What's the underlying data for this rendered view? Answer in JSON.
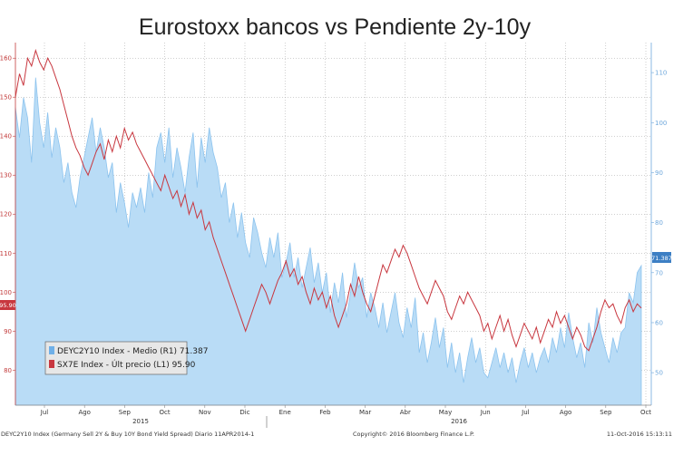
{
  "chart_data": {
    "type": "line",
    "title": "Eurostoxx bancos vs Pendiente 2y-10y",
    "x_labels": [
      "Jul",
      "Ago",
      "Sep",
      "Oct",
      "Nov",
      "Dic",
      "Ene",
      "Feb",
      "Mar",
      "Abr",
      "May",
      "Jun",
      "Jul",
      "Ago",
      "Sep",
      "Oct"
    ],
    "years": [
      "2015",
      "2016"
    ],
    "left_axis": {
      "ticks": [
        80,
        90,
        100,
        110,
        120,
        130,
        140,
        150,
        160
      ],
      "ylim": [
        71,
        164
      ]
    },
    "right_axis": {
      "ticks": [
        50,
        60,
        70,
        80,
        90,
        100,
        110
      ],
      "ylim": [
        43.5,
        116
      ]
    },
    "grid": true,
    "legend_position": "bottom-left",
    "series": [
      {
        "name": "DEYC2Y10 Index - Medio (R1) 71.387",
        "axis": "right",
        "type": "area",
        "color": "#b9dcf6",
        "last_value_label": "71.387",
        "values": [
          103,
          97,
          105,
          101,
          92,
          109,
          100,
          95,
          102,
          93,
          99,
          95,
          88,
          92,
          86,
          83,
          89,
          93,
          97,
          101,
          94,
          99,
          95,
          89,
          92,
          82,
          88,
          84,
          79,
          86,
          83,
          87,
          82,
          90,
          85,
          95,
          98,
          92,
          99,
          89,
          95,
          91,
          86,
          93,
          98,
          87,
          97,
          92,
          99,
          94,
          91,
          85,
          88,
          80,
          84,
          77,
          82,
          76,
          73,
          81,
          78,
          74,
          71,
          77,
          73,
          78,
          69,
          72,
          76,
          69,
          73,
          67,
          71,
          75,
          68,
          72,
          66,
          70,
          62,
          68,
          64,
          70,
          61,
          66,
          72,
          67,
          69,
          61,
          66,
          63,
          59,
          64,
          58,
          62,
          66,
          60,
          57,
          63,
          59,
          65,
          54,
          58,
          52,
          56,
          61,
          55,
          59,
          51,
          56,
          50,
          54,
          48,
          53,
          57,
          52,
          55,
          50,
          49,
          52,
          55,
          51,
          54,
          50,
          53,
          48,
          52,
          55,
          51,
          54,
          50,
          53,
          55,
          52,
          57,
          54,
          59,
          55,
          62,
          57,
          53,
          56,
          51,
          60,
          56,
          63,
          58,
          55,
          52,
          57,
          54,
          58,
          59,
          66,
          64,
          70,
          71.387
        ]
      },
      {
        "name": "SX7E Index - Últ precio (L1) 95.90",
        "axis": "left",
        "type": "line",
        "color": "#c8373f",
        "last_value_label": "95.90",
        "values": [
          150,
          156,
          153,
          160,
          158,
          162,
          159,
          157,
          160,
          158,
          155,
          152,
          148,
          144,
          140,
          137,
          135,
          132,
          130,
          133,
          136,
          138,
          134,
          139,
          136,
          140,
          137,
          142,
          139,
          141,
          138,
          136,
          134,
          132,
          130,
          128,
          126,
          130,
          127,
          124,
          126,
          122,
          125,
          120,
          123,
          119,
          121,
          116,
          118,
          114,
          111,
          108,
          105,
          102,
          99,
          96,
          93,
          90,
          93,
          96,
          99,
          102,
          100,
          97,
          100,
          103,
          105,
          108,
          104,
          106,
          102,
          104,
          100,
          97,
          101,
          98,
          100,
          96,
          99,
          94,
          91,
          94,
          97,
          102,
          99,
          104,
          100,
          97,
          95,
          99,
          103,
          107,
          105,
          108,
          111,
          109,
          112,
          110,
          107,
          104,
          101,
          99,
          97,
          100,
          103,
          101,
          99,
          95,
          93,
          96,
          99,
          97,
          100,
          98,
          96,
          94,
          90,
          92,
          88,
          91,
          94,
          90,
          93,
          89,
          86,
          89,
          92,
          90,
          88,
          91,
          87,
          90,
          93,
          91,
          95,
          92,
          94,
          91,
          88,
          91,
          89,
          86,
          85,
          88,
          91,
          95,
          98,
          96,
          97,
          94,
          92,
          96,
          98,
          95,
          97,
          95.9
        ]
      }
    ]
  },
  "footer": {
    "left": "DEYC2Y10 Index (Germany Sell 2Y & Buy 10Y Bond Yield Spread) Diario 11APR2014-1",
    "center": "Copyright© 2016 Bloomberg Finance L.P.",
    "right": "11-Oct-2016 15:13:11"
  },
  "colors": {
    "area": "#b9dcf6",
    "area_line": "#8cc3ee",
    "sx7e": "#c8373f",
    "grid": "#9e9e9e"
  }
}
